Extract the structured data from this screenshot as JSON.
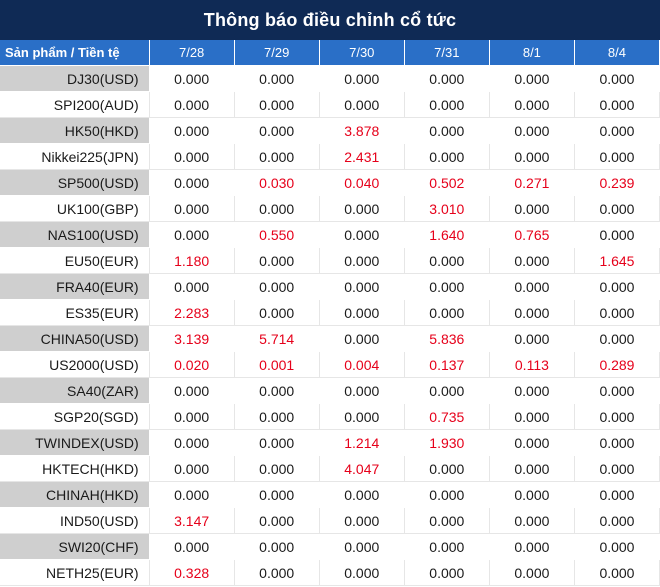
{
  "title": "Thông báo điều chỉnh cổ tức",
  "header": {
    "product_label": "Sản phẩm / Tiền tệ",
    "dates": [
      "7/28",
      "7/29",
      "7/30",
      "7/31",
      "8/1",
      "8/4"
    ]
  },
  "colors": {
    "title_bg": "#0f2a55",
    "header_bg": "#2a6fc7",
    "highlight": "#e6001a",
    "stripe": "#cfcfcf"
  },
  "rows": [
    {
      "product": "DJ30(USD)",
      "values": [
        "0.000",
        "0.000",
        "0.000",
        "0.000",
        "0.000",
        "0.000"
      ]
    },
    {
      "product": "SPI200(AUD)",
      "values": [
        "0.000",
        "0.000",
        "0.000",
        "0.000",
        "0.000",
        "0.000"
      ]
    },
    {
      "product": "HK50(HKD)",
      "values": [
        "0.000",
        "0.000",
        "3.878",
        "0.000",
        "0.000",
        "0.000"
      ]
    },
    {
      "product": "Nikkei225(JPN)",
      "values": [
        "0.000",
        "0.000",
        "2.431",
        "0.000",
        "0.000",
        "0.000"
      ]
    },
    {
      "product": "SP500(USD)",
      "values": [
        "0.000",
        "0.030",
        "0.040",
        "0.502",
        "0.271",
        "0.239"
      ]
    },
    {
      "product": "UK100(GBP)",
      "values": [
        "0.000",
        "0.000",
        "0.000",
        "3.010",
        "0.000",
        "0.000"
      ]
    },
    {
      "product": "NAS100(USD)",
      "values": [
        "0.000",
        "0.550",
        "0.000",
        "1.640",
        "0.765",
        "0.000"
      ]
    },
    {
      "product": "EU50(EUR)",
      "values": [
        "1.180",
        "0.000",
        "0.000",
        "0.000",
        "0.000",
        "1.645"
      ]
    },
    {
      "product": "FRA40(EUR)",
      "values": [
        "0.000",
        "0.000",
        "0.000",
        "0.000",
        "0.000",
        "0.000"
      ]
    },
    {
      "product": "ES35(EUR)",
      "values": [
        "2.283",
        "0.000",
        "0.000",
        "0.000",
        "0.000",
        "0.000"
      ]
    },
    {
      "product": "CHINA50(USD)",
      "values": [
        "3.139",
        "5.714",
        "0.000",
        "5.836",
        "0.000",
        "0.000"
      ]
    },
    {
      "product": "US2000(USD)",
      "values": [
        "0.020",
        "0.001",
        "0.004",
        "0.137",
        "0.113",
        "0.289"
      ]
    },
    {
      "product": "SA40(ZAR)",
      "values": [
        "0.000",
        "0.000",
        "0.000",
        "0.000",
        "0.000",
        "0.000"
      ]
    },
    {
      "product": "SGP20(SGD)",
      "values": [
        "0.000",
        "0.000",
        "0.000",
        "0.735",
        "0.000",
        "0.000"
      ]
    },
    {
      "product": "TWINDEX(USD)",
      "values": [
        "0.000",
        "0.000",
        "1.214",
        "1.930",
        "0.000",
        "0.000"
      ]
    },
    {
      "product": "HKTECH(HKD)",
      "values": [
        "0.000",
        "0.000",
        "4.047",
        "0.000",
        "0.000",
        "0.000"
      ]
    },
    {
      "product": "CHINAH(HKD)",
      "values": [
        "0.000",
        "0.000",
        "0.000",
        "0.000",
        "0.000",
        "0.000"
      ]
    },
    {
      "product": "IND50(USD)",
      "values": [
        "3.147",
        "0.000",
        "0.000",
        "0.000",
        "0.000",
        "0.000"
      ]
    },
    {
      "product": "SWI20(CHF)",
      "values": [
        "0.000",
        "0.000",
        "0.000",
        "0.000",
        "0.000",
        "0.000"
      ]
    },
    {
      "product": "NETH25(EUR)",
      "values": [
        "0.328",
        "0.000",
        "0.000",
        "0.000",
        "0.000",
        "0.000"
      ]
    }
  ]
}
